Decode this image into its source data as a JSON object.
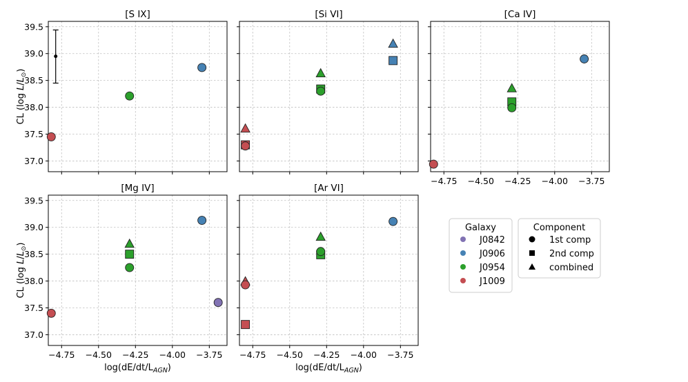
{
  "chart_data": {
    "type": "scatter",
    "figure_layout": "2x3 grid of panels with shared axes; 6th cell holds the legends",
    "xlabel": "log(dE/dt/L",
    "xlabel_sub": "AGN",
    "xlabel_close": ")",
    "ylabel_prefix": "CL (log ",
    "ylabel_italic": "L",
    "ylabel_slash": "/",
    "ylabel_sun_italic": "L",
    "ylabel_sun": "⊙",
    "ylabel_suffix": ")",
    "xlim": [
      -4.84,
      -3.63
    ],
    "ylim": [
      36.8,
      39.6
    ],
    "xticks": [
      -4.75,
      -4.5,
      -4.25,
      -4.0,
      -3.75
    ],
    "xtick_labels": [
      "−4.75",
      "−4.50",
      "−4.25",
      "−4.00",
      "−3.75"
    ],
    "yticks": [
      37.0,
      37.5,
      38.0,
      38.5,
      39.0,
      39.5
    ],
    "ytick_labels": [
      "37.0",
      "37.5",
      "38.0",
      "38.5",
      "39.0",
      "39.5"
    ],
    "grid": true,
    "colors": {
      "J0842": "#8172b3",
      "J0906": "#4682b4",
      "J0954": "#2ca02c",
      "J1009": "#c44e52"
    },
    "panels": [
      {
        "title": "[S IX]",
        "points": [
          {
            "galaxy": "J1009",
            "component": "1st comp",
            "x": -4.82,
            "y": 37.45
          },
          {
            "galaxy": "J0954",
            "component": "1st comp",
            "x": -4.29,
            "y": 38.21
          },
          {
            "galaxy": "J0906",
            "component": "1st comp",
            "x": -3.8,
            "y": 38.74
          }
        ],
        "error_bar": {
          "x": -4.79,
          "y": 38.95,
          "ylow": 38.45,
          "yhigh": 39.44
        }
      },
      {
        "title": "[Si VI]",
        "points": [
          {
            "galaxy": "J1009",
            "component": "1st comp",
            "x": -4.8,
            "y": 37.28
          },
          {
            "galaxy": "J1009",
            "component": "2nd comp",
            "x": -4.8,
            "y": 37.3
          },
          {
            "galaxy": "J1009",
            "component": "combined",
            "x": -4.8,
            "y": 37.6
          },
          {
            "galaxy": "J0954",
            "component": "1st comp",
            "x": -4.29,
            "y": 38.3
          },
          {
            "galaxy": "J0954",
            "component": "2nd comp",
            "x": -4.29,
            "y": 38.34
          },
          {
            "galaxy": "J0954",
            "component": "combined",
            "x": -4.29,
            "y": 38.63
          },
          {
            "galaxy": "J0906",
            "component": "2nd comp",
            "x": -3.8,
            "y": 38.87
          },
          {
            "galaxy": "J0906",
            "component": "combined",
            "x": -3.8,
            "y": 39.18
          }
        ]
      },
      {
        "title": "[Ca IV]",
        "points": [
          {
            "galaxy": "J1009",
            "component": "1st comp",
            "x": -4.82,
            "y": 36.94
          },
          {
            "galaxy": "J0954",
            "component": "1st comp",
            "x": -4.29,
            "y": 37.99
          },
          {
            "galaxy": "J0954",
            "component": "2nd comp",
            "x": -4.29,
            "y": 38.1
          },
          {
            "galaxy": "J0954",
            "component": "combined",
            "x": -4.29,
            "y": 38.35
          },
          {
            "galaxy": "J0906",
            "component": "1st comp",
            "x": -3.8,
            "y": 38.9
          }
        ]
      },
      {
        "title": "[Mg IV]",
        "points": [
          {
            "galaxy": "J1009",
            "component": "1st comp",
            "x": -4.82,
            "y": 37.4
          },
          {
            "galaxy": "J0954",
            "component": "1st comp",
            "x": -4.29,
            "y": 38.25
          },
          {
            "galaxy": "J0954",
            "component": "2nd comp",
            "x": -4.29,
            "y": 38.5
          },
          {
            "galaxy": "J0954",
            "component": "combined",
            "x": -4.29,
            "y": 38.69
          },
          {
            "galaxy": "J0906",
            "component": "1st comp",
            "x": -3.8,
            "y": 39.13
          },
          {
            "galaxy": "J0842",
            "component": "1st comp",
            "x": -3.69,
            "y": 37.6
          }
        ]
      },
      {
        "title": "[Ar VI]",
        "points": [
          {
            "galaxy": "J1009",
            "component": "2nd comp",
            "x": -4.8,
            "y": 37.19
          },
          {
            "galaxy": "J1009",
            "component": "1st comp",
            "x": -4.8,
            "y": 37.93
          },
          {
            "galaxy": "J1009",
            "component": "combined",
            "x": -4.8,
            "y": 37.99
          },
          {
            "galaxy": "J0954",
            "component": "1st comp",
            "x": -4.29,
            "y": 38.55
          },
          {
            "galaxy": "J0954",
            "component": "2nd comp",
            "x": -4.29,
            "y": 38.49
          },
          {
            "galaxy": "J0954",
            "component": "combined",
            "x": -4.29,
            "y": 38.82
          },
          {
            "galaxy": "J0906",
            "component": "1st comp",
            "x": -3.8,
            "y": 39.11
          }
        ]
      }
    ],
    "legends": [
      {
        "title": "Galaxy",
        "kind": "color",
        "entries": [
          "J0842",
          "J0906",
          "J0954",
          "J1009"
        ]
      },
      {
        "title": "Component",
        "kind": "marker",
        "entries": [
          {
            "label": "1st comp",
            "marker": "circle"
          },
          {
            "label": "2nd comp",
            "marker": "square"
          },
          {
            "label": "combined",
            "marker": "triangle"
          }
        ]
      }
    ]
  }
}
